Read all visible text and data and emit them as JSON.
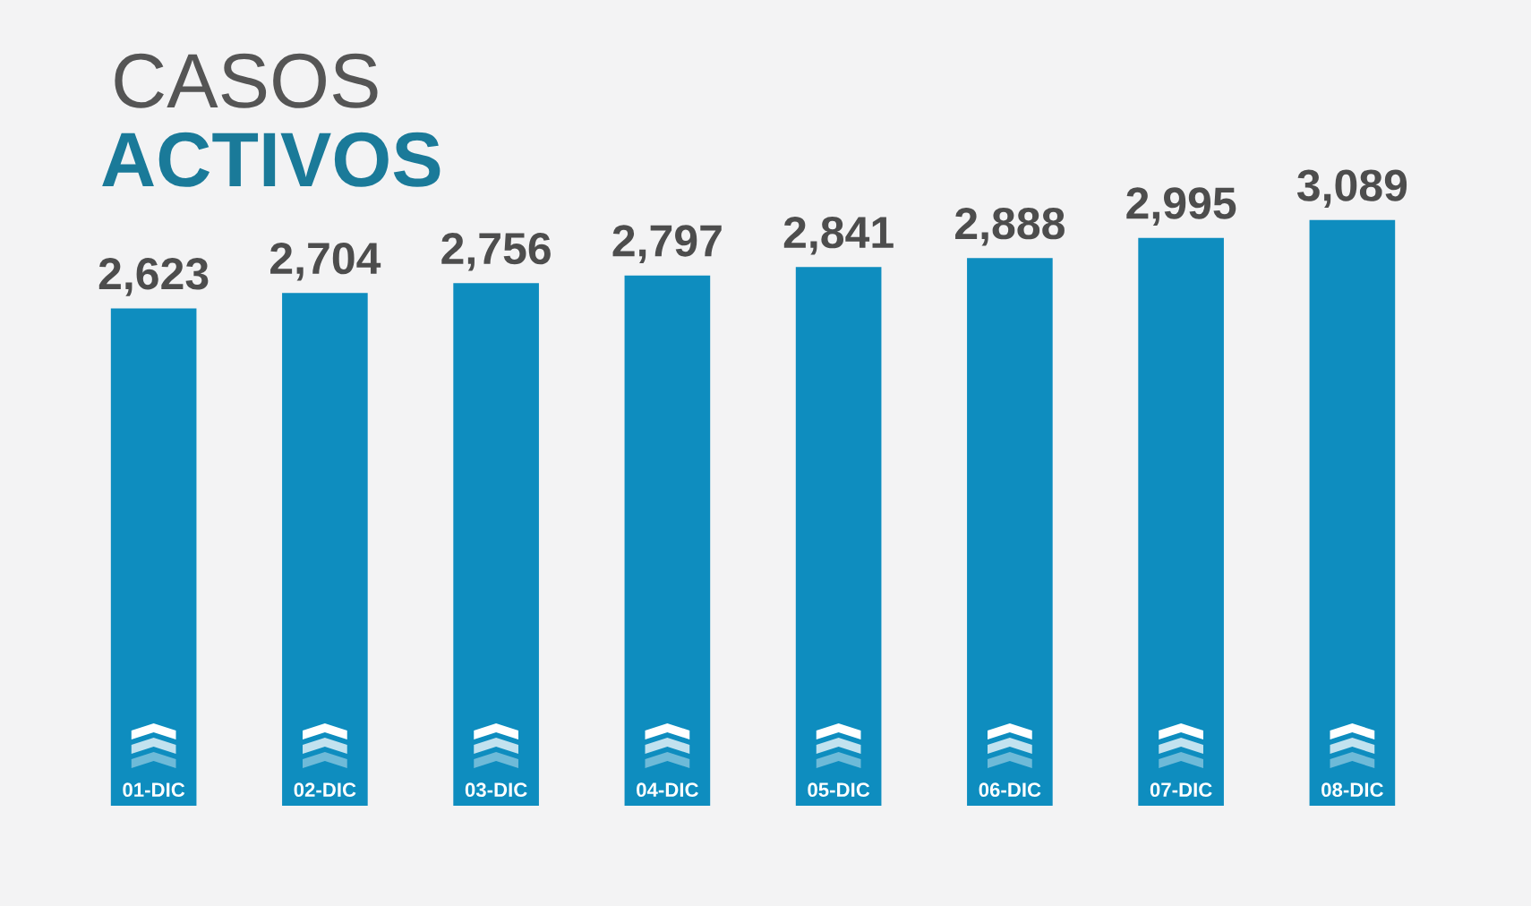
{
  "chart_data": {
    "type": "bar",
    "title": "CASOS\nACTIVOS",
    "categories": [
      "01-DIC",
      "02-DIC",
      "03-DIC",
      "04-DIC",
      "05-DIC",
      "06-DIC",
      "07-DIC",
      "08-DIC"
    ],
    "values": [
      2623,
      2704,
      2756,
      2797,
      2841,
      2888,
      2995,
      3089
    ],
    "value_labels": [
      "2,623",
      "2,704",
      "2,756",
      "2,797",
      "2,841",
      "2,888",
      "2,995",
      "3,089"
    ],
    "color": "#0e8dbf",
    "tick_labels": "x",
    "grid": false,
    "legend": false
  }
}
